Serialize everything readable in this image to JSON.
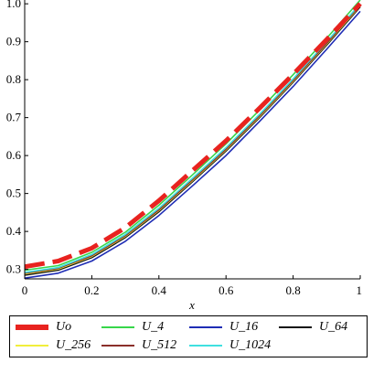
{
  "chart_data": {
    "type": "line",
    "title": "",
    "xlabel": "x",
    "ylabel": "",
    "xlim": [
      0,
      1
    ],
    "ylim": [
      0.275,
      1.01
    ],
    "x_ticks": [
      "0",
      "0.2",
      "0.4",
      "0.6",
      "0.8",
      "1"
    ],
    "x_tick_values": [
      0,
      0.2,
      0.4,
      0.6,
      0.8,
      1
    ],
    "y_ticks": [
      "0.3",
      "0.4",
      "0.5",
      "0.6",
      "0.7",
      "0.8",
      "0.9",
      "1.0"
    ],
    "y_tick_values": [
      0.3,
      0.4,
      0.5,
      0.6,
      0.7,
      0.8,
      0.9,
      1.0
    ],
    "grid": false,
    "legend_position": "bottom",
    "x": [
      0,
      0.1,
      0.2,
      0.3,
      0.4,
      0.5,
      0.6,
      0.7,
      0.8,
      0.9,
      1.0
    ],
    "series": [
      {
        "name": "Uo",
        "color": "#e8231f",
        "style": "dashed-thick",
        "values": [
          0.307,
          0.322,
          0.356,
          0.41,
          0.481,
          0.56,
          0.639,
          0.725,
          0.814,
          0.906,
          1.0
        ]
      },
      {
        "name": "U_4",
        "color": "#37d64a",
        "style": "solid",
        "values": [
          0.298,
          0.31,
          0.345,
          0.398,
          0.469,
          0.549,
          0.631,
          0.72,
          0.813,
          0.909,
          1.01
        ]
      },
      {
        "name": "U_16",
        "color": "#1f2db5",
        "style": "solid",
        "values": [
          0.277,
          0.29,
          0.322,
          0.374,
          0.442,
          0.52,
          0.6,
          0.69,
          0.782,
          0.88,
          0.98
        ]
      },
      {
        "name": "U_64",
        "color": "#111111",
        "style": "solid",
        "values": [
          0.285,
          0.298,
          0.331,
          0.384,
          0.452,
          0.531,
          0.612,
          0.7,
          0.793,
          0.891,
          0.992
        ]
      },
      {
        "name": "U_256",
        "color": "#f1ee3c",
        "style": "solid",
        "values": [
          0.288,
          0.301,
          0.334,
          0.387,
          0.455,
          0.534,
          0.615,
          0.703,
          0.796,
          0.894,
          0.995
        ]
      },
      {
        "name": "U_512",
        "color": "#8b2f2a",
        "style": "solid",
        "values": [
          0.29,
          0.303,
          0.336,
          0.389,
          0.457,
          0.536,
          0.617,
          0.705,
          0.798,
          0.896,
          0.997
        ]
      },
      {
        "name": "U_1024",
        "color": "#3fe0e0",
        "style": "solid",
        "values": [
          0.292,
          0.305,
          0.339,
          0.392,
          0.461,
          0.54,
          0.621,
          0.709,
          0.802,
          0.9,
          1.0
        ]
      }
    ]
  }
}
